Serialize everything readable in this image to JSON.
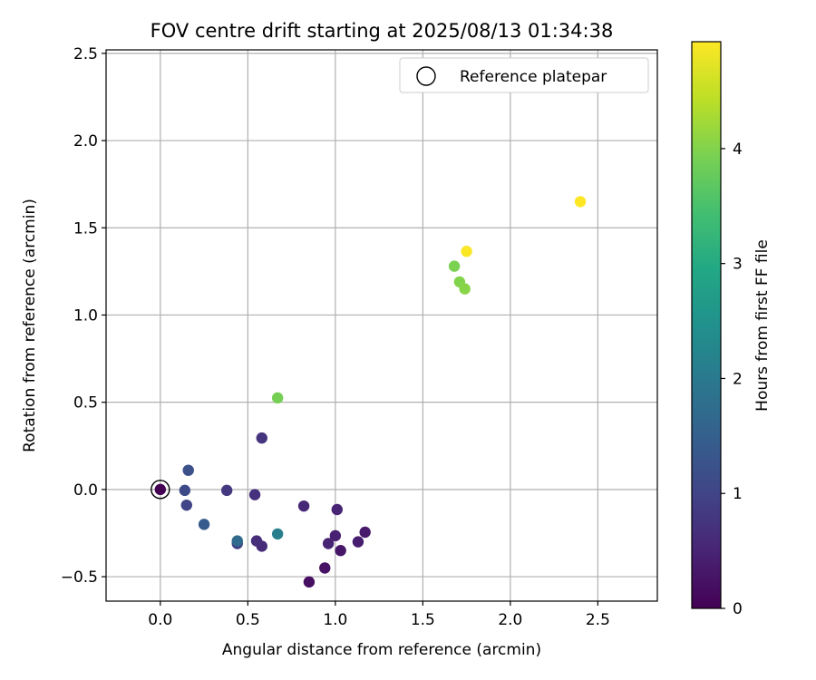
{
  "chart_data": {
    "type": "scatter",
    "title": "FOV centre drift starting at 2025/08/13 01:34:38",
    "xlabel": "Angular distance from reference (arcmin)",
    "ylabel": "Rotation from reference (arcmin)",
    "xlim": [
      -0.31,
      2.84
    ],
    "ylim": [
      -0.64,
      2.52
    ],
    "xticks": [
      0.0,
      0.5,
      1.0,
      1.5,
      2.0,
      2.5
    ],
    "xtick_labels": [
      "0.0",
      "0.5",
      "1.0",
      "1.5",
      "2.0",
      "2.5"
    ],
    "yticks": [
      -0.5,
      0.0,
      0.5,
      1.0,
      1.5,
      2.0,
      2.5
    ],
    "ytick_labels": [
      "−0.5",
      "0.0",
      "0.5",
      "1.0",
      "1.5",
      "2.0",
      "2.5"
    ],
    "grid": true,
    "legend": {
      "position": "top-right",
      "entries": [
        "Reference platepar"
      ]
    },
    "colorbar": {
      "label": "Hours from first FF file",
      "range": [
        0,
        4.93
      ],
      "ticks": [
        0,
        1,
        2,
        3,
        4
      ],
      "tick_labels": [
        "0",
        "1",
        "2",
        "3",
        "4"
      ],
      "colormap": "viridis"
    },
    "reference_point": {
      "x": 0.0,
      "y": 0.0
    },
    "points": [
      {
        "x": 0.0,
        "y": 0.0,
        "hours": 0.0
      },
      {
        "x": 0.85,
        "y": -0.53,
        "hours": 0.2
      },
      {
        "x": 0.94,
        "y": -0.45,
        "hours": 0.25
      },
      {
        "x": 1.03,
        "y": -0.35,
        "hours": 0.3
      },
      {
        "x": 1.17,
        "y": -0.245,
        "hours": 0.35
      },
      {
        "x": 1.13,
        "y": -0.3,
        "hours": 0.4
      },
      {
        "x": 1.0,
        "y": -0.265,
        "hours": 0.45
      },
      {
        "x": 0.96,
        "y": -0.31,
        "hours": 0.5
      },
      {
        "x": 1.01,
        "y": -0.115,
        "hours": 0.5
      },
      {
        "x": 0.82,
        "y": -0.095,
        "hours": 0.55
      },
      {
        "x": 0.58,
        "y": -0.325,
        "hours": 0.6
      },
      {
        "x": 0.55,
        "y": -0.295,
        "hours": 0.65
      },
      {
        "x": 0.54,
        "y": -0.03,
        "hours": 0.7
      },
      {
        "x": 0.58,
        "y": 0.295,
        "hours": 0.75
      },
      {
        "x": 0.38,
        "y": -0.005,
        "hours": 0.8
      },
      {
        "x": 0.44,
        "y": -0.31,
        "hours": 0.9
      },
      {
        "x": 0.15,
        "y": -0.09,
        "hours": 1.0
      },
      {
        "x": 0.14,
        "y": -0.005,
        "hours": 1.1
      },
      {
        "x": 0.16,
        "y": 0.11,
        "hours": 1.2
      },
      {
        "x": 0.25,
        "y": -0.2,
        "hours": 1.4
      },
      {
        "x": 0.44,
        "y": -0.295,
        "hours": 1.7
      },
      {
        "x": 0.67,
        "y": -0.255,
        "hours": 2.1
      },
      {
        "x": 0.67,
        "y": 0.525,
        "hours": 3.9
      },
      {
        "x": 1.68,
        "y": 1.28,
        "hours": 3.95
      },
      {
        "x": 1.71,
        "y": 1.19,
        "hours": 4.0
      },
      {
        "x": 1.74,
        "y": 1.15,
        "hours": 4.05
      },
      {
        "x": 1.75,
        "y": 1.365,
        "hours": 4.9
      },
      {
        "x": 2.4,
        "y": 1.65,
        "hours": 4.93
      }
    ]
  }
}
